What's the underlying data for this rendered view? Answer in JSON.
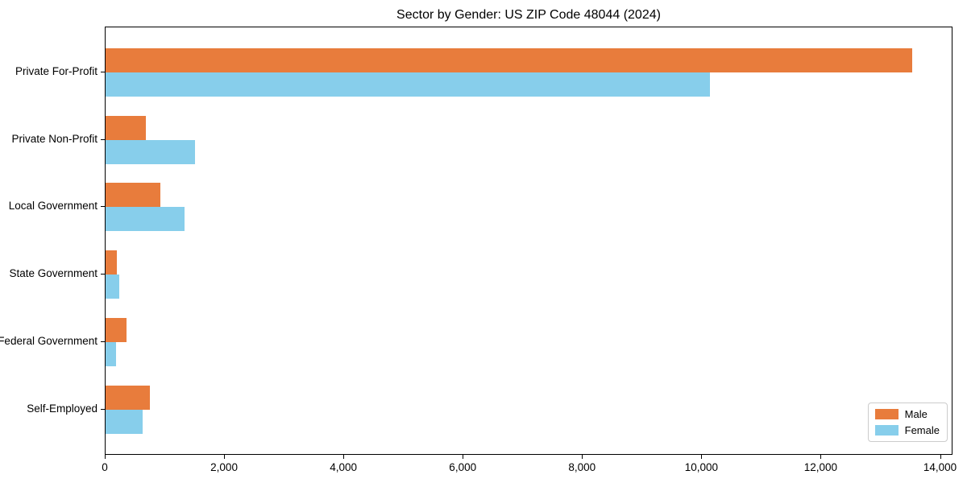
{
  "chart_data": {
    "type": "bar",
    "orientation": "horizontal",
    "title": "Sector by Gender: US ZIP Code 48044 (2024)",
    "categories": [
      "Private For-Profit",
      "Private Non-Profit",
      "Local Government",
      "State Government",
      "Federal Government",
      "Self-Employed"
    ],
    "series": [
      {
        "name": "Male",
        "color": "#e87c3c",
        "values": [
          13520,
          680,
          920,
          190,
          350,
          740
        ]
      },
      {
        "name": "Female",
        "color": "#87ceeb",
        "values": [
          10130,
          1500,
          1320,
          230,
          170,
          620
        ]
      }
    ],
    "xlabel": "",
    "ylabel": "",
    "xlim": [
      0,
      14200
    ],
    "xticks": [
      0,
      2000,
      4000,
      6000,
      8000,
      10000,
      12000,
      14000
    ],
    "xtick_labels": [
      "0",
      "2,000",
      "4,000",
      "6,000",
      "8,000",
      "10,000",
      "12,000",
      "14,000"
    ],
    "grid": false,
    "legend": {
      "position": "lower right"
    }
  }
}
